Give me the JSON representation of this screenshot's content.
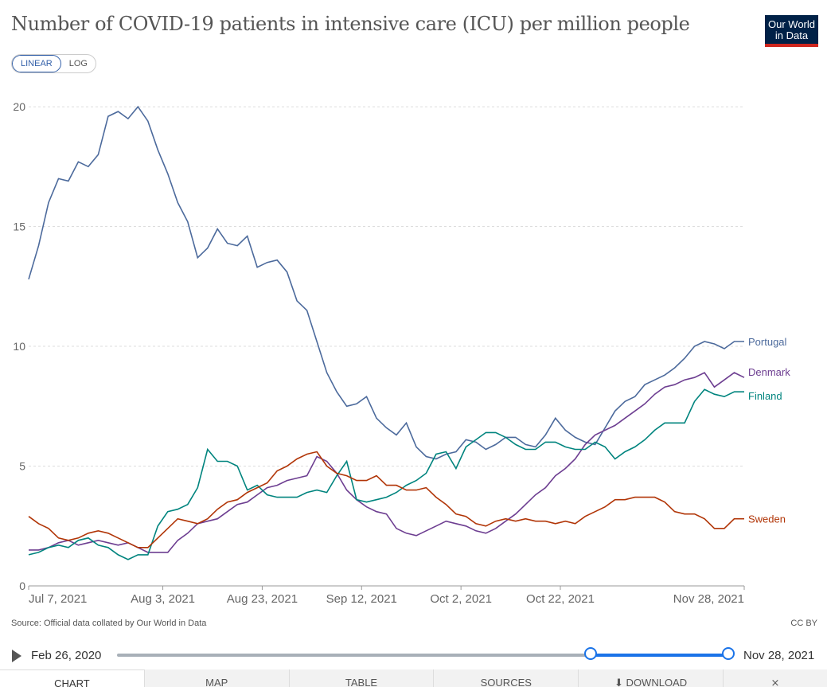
{
  "header": {
    "title": "Number of COVID-19 patients in intensive care (ICU) per million people",
    "logo_line1": "Our World",
    "logo_line2": "in Data"
  },
  "scale_toggle": {
    "linear": "LINEAR",
    "log": "LOG",
    "selected": "LINEAR"
  },
  "footer": {
    "source": "Source: Official data collated by Our World in Data",
    "license": "CC BY"
  },
  "timeline": {
    "start_label": "Feb 26, 2020",
    "end_label": "Nov 28, 2021",
    "selected_range_start_fraction": 0.77,
    "selected_range_end_fraction": 1.0
  },
  "tabs": [
    "CHART",
    "MAP",
    "TABLE",
    "SOURCES",
    "⬇ DOWNLOAD",
    "share"
  ],
  "icons": {
    "play": "play-icon",
    "download": "download-icon",
    "share": "share-icon"
  },
  "colors": {
    "Portugal": "#4c6a9c",
    "Denmark": "#6d3e91",
    "Finland": "#00847e",
    "Sweden": "#b13507",
    "accent": "#1a73e8"
  },
  "chart_data": {
    "type": "line",
    "title": "Number of COVID-19 patients in intensive care (ICU) per million people",
    "x_tick_labels": [
      "Jul 7, 2021",
      "Aug 3, 2021",
      "Aug 23, 2021",
      "Sep 12, 2021",
      "Oct 2, 2021",
      "Oct 22, 2021",
      "Nov 28, 2021"
    ],
    "x_tick_days": [
      0,
      27,
      47,
      67,
      87,
      107,
      144
    ],
    "y_ticks": [
      0,
      5,
      10,
      15,
      20
    ],
    "ylim": [
      0,
      20.8
    ],
    "x_range_days": [
      0,
      144
    ],
    "grid": "horizontal dashed",
    "legend": "line-end labels on right",
    "series": [
      {
        "name": "Portugal",
        "color": "#4c6a9c",
        "x": [
          0,
          2,
          4,
          6,
          8,
          10,
          12,
          14,
          16,
          18,
          20,
          22,
          24,
          26,
          28,
          30,
          32,
          34,
          36,
          38,
          40,
          42,
          44,
          46,
          48,
          50,
          52,
          54,
          56,
          58,
          60,
          62,
          64,
          66,
          68,
          70,
          72,
          74,
          76,
          78,
          80,
          82,
          84,
          86,
          88,
          90,
          92,
          94,
          96,
          98,
          100,
          102,
          104,
          106,
          108,
          110,
          112,
          114,
          116,
          118,
          120,
          122,
          124,
          126,
          128,
          130,
          132,
          134,
          136,
          138,
          140,
          142,
          144
        ],
        "y": [
          12.8,
          14.2,
          16.0,
          17.0,
          16.9,
          17.7,
          17.5,
          18.0,
          19.6,
          19.8,
          19.5,
          20.0,
          19.4,
          18.2,
          17.2,
          16.0,
          15.2,
          13.7,
          14.1,
          14.9,
          14.3,
          14.2,
          14.6,
          13.3,
          13.5,
          13.6,
          13.1,
          11.9,
          11.5,
          10.2,
          8.9,
          8.1,
          7.5,
          7.6,
          7.9,
          7.0,
          6.6,
          6.3,
          6.8,
          5.8,
          5.4,
          5.3,
          5.5,
          5.6,
          6.1,
          6.0,
          5.7,
          5.9,
          6.2,
          6.2,
          5.9,
          5.8,
          6.3,
          7.0,
          6.5,
          6.2,
          6.0,
          5.9,
          6.6,
          7.3,
          7.7,
          7.9,
          8.4,
          8.6,
          8.8,
          9.1,
          9.5,
          10.0,
          10.2,
          10.1,
          9.9,
          10.2,
          10.2
        ]
      },
      {
        "name": "Denmark",
        "color": "#6d3e91",
        "x": [
          0,
          2,
          4,
          6,
          8,
          10,
          12,
          14,
          16,
          18,
          20,
          22,
          24,
          26,
          28,
          30,
          32,
          34,
          36,
          38,
          40,
          42,
          44,
          46,
          48,
          50,
          52,
          54,
          56,
          58,
          60,
          62,
          64,
          66,
          68,
          70,
          72,
          74,
          76,
          78,
          80,
          82,
          84,
          86,
          88,
          90,
          92,
          94,
          96,
          98,
          100,
          102,
          104,
          106,
          108,
          110,
          112,
          114,
          116,
          118,
          120,
          122,
          124,
          126,
          128,
          130,
          132,
          134,
          136,
          138,
          140,
          142,
          144
        ],
        "y": [
          1.5,
          1.5,
          1.6,
          1.8,
          1.9,
          1.7,
          1.8,
          1.9,
          1.8,
          1.7,
          1.8,
          1.6,
          1.4,
          1.4,
          1.4,
          1.9,
          2.2,
          2.6,
          2.7,
          2.8,
          3.1,
          3.4,
          3.5,
          3.8,
          4.1,
          4.2,
          4.4,
          4.5,
          4.6,
          5.4,
          5.2,
          4.7,
          4.0,
          3.6,
          3.3,
          3.1,
          3.0,
          2.4,
          2.2,
          2.1,
          2.3,
          2.5,
          2.7,
          2.6,
          2.5,
          2.3,
          2.2,
          2.4,
          2.7,
          3.0,
          3.4,
          3.8,
          4.1,
          4.6,
          4.9,
          5.3,
          5.9,
          6.3,
          6.5,
          6.7,
          7.0,
          7.3,
          7.6,
          8.0,
          8.3,
          8.4,
          8.6,
          8.7,
          8.9,
          8.3,
          8.6,
          8.9,
          8.7
        ]
      },
      {
        "name": "Finland",
        "color": "#00847e",
        "x": [
          0,
          2,
          4,
          6,
          8,
          10,
          12,
          14,
          16,
          18,
          20,
          22,
          24,
          26,
          28,
          30,
          32,
          34,
          36,
          38,
          40,
          42,
          44,
          46,
          48,
          50,
          52,
          54,
          56,
          58,
          60,
          62,
          64,
          66,
          68,
          70,
          72,
          74,
          76,
          78,
          80,
          82,
          84,
          86,
          88,
          90,
          92,
          94,
          96,
          98,
          100,
          102,
          104,
          106,
          108,
          110,
          112,
          114,
          116,
          118,
          120,
          122,
          124,
          126,
          128,
          130,
          132,
          134,
          136,
          138,
          140,
          142,
          144
        ],
        "y": [
          1.3,
          1.4,
          1.6,
          1.7,
          1.6,
          1.9,
          2.0,
          1.7,
          1.6,
          1.3,
          1.1,
          1.3,
          1.3,
          2.5,
          3.1,
          3.2,
          3.4,
          4.1,
          5.7,
          5.2,
          5.2,
          5.0,
          4.0,
          4.2,
          3.8,
          3.7,
          3.7,
          3.7,
          3.9,
          4.0,
          3.9,
          4.6,
          5.2,
          3.6,
          3.5,
          3.6,
          3.7,
          3.9,
          4.2,
          4.4,
          4.7,
          5.5,
          5.6,
          4.9,
          5.8,
          6.1,
          6.4,
          6.4,
          6.2,
          5.9,
          5.7,
          5.7,
          6.0,
          6.0,
          5.8,
          5.7,
          5.7,
          6.0,
          5.8,
          5.3,
          5.6,
          5.8,
          6.1,
          6.5,
          6.8,
          6.8,
          6.8,
          7.7,
          8.2,
          8.0,
          7.9,
          8.1,
          8.1
        ]
      },
      {
        "name": "Sweden",
        "color": "#b13507",
        "x": [
          0,
          2,
          4,
          6,
          8,
          10,
          12,
          14,
          16,
          18,
          20,
          22,
          24,
          26,
          28,
          30,
          32,
          34,
          36,
          38,
          40,
          42,
          44,
          46,
          48,
          50,
          52,
          54,
          56,
          58,
          60,
          62,
          64,
          66,
          68,
          70,
          72,
          74,
          76,
          78,
          80,
          82,
          84,
          86,
          88,
          90,
          92,
          94,
          96,
          98,
          100,
          102,
          104,
          106,
          108,
          110,
          112,
          114,
          116,
          118,
          120,
          122,
          124,
          126,
          128,
          130,
          132,
          134,
          136,
          138,
          140,
          142,
          144
        ],
        "y": [
          2.9,
          2.6,
          2.4,
          2.0,
          1.9,
          2.0,
          2.2,
          2.3,
          2.2,
          2.0,
          1.8,
          1.6,
          1.6,
          2.0,
          2.4,
          2.8,
          2.7,
          2.6,
          2.8,
          3.2,
          3.5,
          3.6,
          3.9,
          4.1,
          4.3,
          4.8,
          5.0,
          5.3,
          5.5,
          5.6,
          5.0,
          4.7,
          4.6,
          4.4,
          4.4,
          4.6,
          4.2,
          4.2,
          4.0,
          4.0,
          4.1,
          3.7,
          3.4,
          3.0,
          2.9,
          2.6,
          2.5,
          2.7,
          2.8,
          2.7,
          2.8,
          2.7,
          2.7,
          2.6,
          2.7,
          2.6,
          2.9,
          3.1,
          3.3,
          3.6,
          3.6,
          3.7,
          3.7,
          3.7,
          3.5,
          3.1,
          3.0,
          3.0,
          2.8,
          2.4,
          2.4,
          2.8,
          2.8
        ]
      }
    ]
  }
}
